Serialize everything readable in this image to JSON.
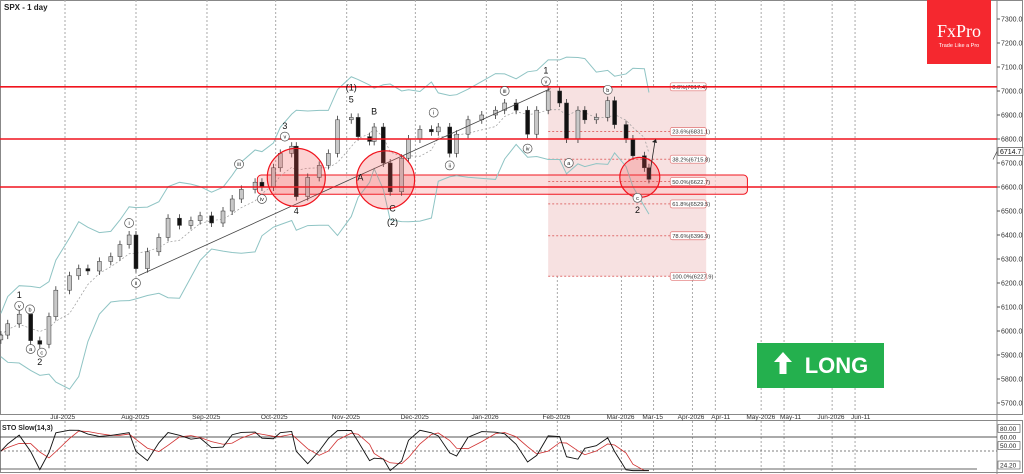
{
  "header": {
    "title": "SPX - 1 day"
  },
  "logo": {
    "brand": "FxPro",
    "tagline": "Trade Like a Pro"
  },
  "signal": {
    "label": "LONG",
    "icon": "arrow-up-icon",
    "color": "#24b04e"
  },
  "current_price": "6714.7",
  "chart_data": {
    "type": "candlestick",
    "symbol": "SPX",
    "timeframe": "1 day",
    "ylim": [
      5650,
      7350
    ],
    "y_ticks": [
      "7300.0",
      "7200.0",
      "7100.0",
      "7000.0",
      "6900.0",
      "6800.0",
      "6700.0",
      "6600.0",
      "6500.0",
      "6400.0",
      "6300.0",
      "6200.0",
      "6100.0",
      "6000.0",
      "5900.0",
      "5800.0",
      "5700.0"
    ],
    "x_ticks": [
      {
        "label": "Jul-2025",
        "date": "2025-07-01"
      },
      {
        "label": "Aug-2025",
        "date": "2025-08-01"
      },
      {
        "label": "Sep-2025",
        "date": "2025-09-01"
      },
      {
        "label": "Oct-2025",
        "date": "2025-10-01"
      },
      {
        "label": "Nov-2025",
        "date": "2025-11-01"
      },
      {
        "label": "Dec-2025",
        "date": "2025-12-01"
      },
      {
        "label": "Jan-2026",
        "date": "2026-01-01"
      },
      {
        "label": "Feb-2026",
        "date": "2026-02-01"
      },
      {
        "label": "Mar-2026",
        "date": "2026-03-01"
      },
      {
        "label": "Mar-15",
        "date": "2026-03-15"
      },
      {
        "label": "Apr-2026",
        "date": "2026-04-01"
      },
      {
        "label": "Apr-11",
        "date": "2026-04-11"
      },
      {
        "label": "May-2026",
        "date": "2026-05-01"
      },
      {
        "label": "May-11",
        "date": "2026-05-11"
      },
      {
        "label": "Jun-2026",
        "date": "2026-06-01"
      },
      {
        "label": "Jun-11",
        "date": "2026-06-11"
      }
    ],
    "candles": [
      [
        "2025-06-03",
        5983
      ],
      [
        "2025-06-06",
        6030
      ],
      [
        "2025-06-11",
        6070
      ],
      [
        "2025-06-16",
        5960
      ],
      [
        "2025-06-20",
        5945
      ],
      [
        "2025-06-24",
        6060
      ],
      [
        "2025-06-27",
        6170
      ],
      [
        "2025-07-03",
        6230
      ],
      [
        "2025-07-07",
        6260
      ],
      [
        "2025-07-11",
        6250
      ],
      [
        "2025-07-16",
        6290
      ],
      [
        "2025-07-21",
        6310
      ],
      [
        "2025-07-25",
        6360
      ],
      [
        "2025-07-29",
        6400
      ],
      [
        "2025-08-01",
        6260
      ],
      [
        "2025-08-06",
        6330
      ],
      [
        "2025-08-11",
        6390
      ],
      [
        "2025-08-15",
        6470
      ],
      [
        "2025-08-20",
        6440
      ],
      [
        "2025-08-25",
        6460
      ],
      [
        "2025-08-29",
        6480
      ],
      [
        "2025-09-03",
        6450
      ],
      [
        "2025-09-08",
        6500
      ],
      [
        "2025-09-12",
        6550
      ],
      [
        "2025-09-16",
        6590
      ],
      [
        "2025-09-22",
        6620
      ],
      [
        "2025-09-25",
        6600
      ],
      [
        "2025-09-30",
        6680
      ],
      [
        "2025-10-03",
        6740
      ],
      [
        "2025-10-08",
        6770
      ],
      [
        "2025-10-10",
        6560
      ],
      [
        "2025-10-15",
        6640
      ],
      [
        "2025-10-20",
        6690
      ],
      [
        "2025-10-24",
        6740
      ],
      [
        "2025-10-28",
        6880
      ],
      [
        "2025-11-03",
        6890
      ],
      [
        "2025-11-06",
        6810
      ],
      [
        "2025-11-11",
        6790
      ],
      [
        "2025-11-13",
        6850
      ],
      [
        "2025-11-17",
        6700
      ],
      [
        "2025-11-20",
        6580
      ],
      [
        "2025-11-25",
        6720
      ],
      [
        "2025-11-28",
        6800
      ],
      [
        "2025-12-03",
        6840
      ],
      [
        "2025-12-08",
        6830
      ],
      [
        "2025-12-11",
        6850
      ],
      [
        "2025-12-16",
        6740
      ],
      [
        "2025-12-19",
        6820
      ],
      [
        "2025-12-24",
        6880
      ],
      [
        "2025-12-30",
        6900
      ],
      [
        "2026-01-05",
        6920
      ],
      [
        "2026-01-09",
        6950
      ],
      [
        "2026-01-14",
        6920
      ],
      [
        "2026-01-19",
        6820
      ],
      [
        "2026-01-23",
        6920
      ],
      [
        "2026-01-28",
        7000
      ],
      [
        "2026-02-02",
        6950
      ],
      [
        "2026-02-05",
        6800
      ],
      [
        "2026-02-10",
        6920
      ],
      [
        "2026-02-13",
        6880
      ],
      [
        "2026-02-18",
        6890
      ],
      [
        "2026-02-23",
        6960
      ],
      [
        "2026-02-26",
        6860
      ],
      [
        "2026-03-03",
        6800
      ],
      [
        "2026-03-06",
        6730
      ],
      [
        "2026-03-11",
        6680
      ],
      [
        "2026-03-13",
        6632
      ]
    ],
    "horizontal_levels": [
      7017.4,
      6800,
      6600
    ],
    "support_zone": {
      "from": 6570,
      "to": 6650,
      "start": "2025-09-23",
      "end": "2026-04-25"
    },
    "trendline": [
      [
        "2025-08-02",
        6230
      ],
      [
        "2026-01-29",
        7010
      ]
    ],
    "highlight_circles": [
      [
        "2025-10-10",
        6640
      ],
      [
        "2025-11-18",
        6630
      ],
      [
        "2026-03-09",
        6640
      ]
    ],
    "fibonacci": {
      "start": "2026-01-28",
      "end": "2026-04-07",
      "levels": [
        {
          "label": "0.0%(7017.4)",
          "price": 7017.4
        },
        {
          "label": "23.6%(6831.1)",
          "price": 6831.1
        },
        {
          "label": "38.2%(6715.8)",
          "price": 6715.8
        },
        {
          "label": "50.0%(6622.7)",
          "price": 6622.7
        },
        {
          "label": "61.8%(6529.5)",
          "price": 6529.5
        },
        {
          "label": "78.6%(6396.9)",
          "price": 6396.9
        },
        {
          "label": "100.0%(6227.9)",
          "price": 6227.9
        }
      ]
    },
    "wave_labels": [
      {
        "text": "1",
        "date": "2025-06-11",
        "price": 6150,
        "circle": false
      },
      {
        "text": "v",
        "date": "2025-06-11",
        "price": 6105,
        "circle": true
      },
      {
        "text": "b",
        "date": "2025-06-14",
        "price": 6090,
        "circle": true
      },
      {
        "text": "a",
        "date": "2025-06-16",
        "price": 5925,
        "circle": true
      },
      {
        "text": "c",
        "date": "2025-06-20",
        "price": 5910,
        "circle": true
      },
      {
        "text": "2",
        "date": "2025-06-20",
        "price": 5870,
        "circle": false
      },
      {
        "text": "i",
        "date": "2025-07-29",
        "price": 6450,
        "circle": true
      },
      {
        "text": "ii",
        "date": "2025-08-01",
        "price": 6200,
        "circle": true
      },
      {
        "text": "iii",
        "date": "2025-09-15",
        "price": 6695,
        "circle": true
      },
      {
        "text": "iv",
        "date": "2025-09-25",
        "price": 6550,
        "circle": true
      },
      {
        "text": "3",
        "date": "2025-10-05",
        "price": 6855,
        "circle": false
      },
      {
        "text": "v",
        "date": "2025-10-05",
        "price": 6810,
        "circle": true
      },
      {
        "text": "4",
        "date": "2025-10-10",
        "price": 6500,
        "circle": false
      },
      {
        "text": "(1)",
        "date": "2025-11-03",
        "price": 7015,
        "circle": false
      },
      {
        "text": "5",
        "date": "2025-11-03",
        "price": 6965,
        "circle": false
      },
      {
        "text": "B",
        "date": "2025-11-13",
        "price": 6915,
        "circle": false
      },
      {
        "text": "A",
        "date": "2025-11-07",
        "price": 6640,
        "circle": false
      },
      {
        "text": "C",
        "date": "2025-11-21",
        "price": 6510,
        "circle": false
      },
      {
        "text": "(2)",
        "date": "2025-11-21",
        "price": 6455,
        "circle": false
      },
      {
        "text": "i",
        "date": "2025-12-09",
        "price": 6910,
        "circle": true
      },
      {
        "text": "ii",
        "date": "2025-12-16",
        "price": 6690,
        "circle": true
      },
      {
        "text": "iii",
        "date": "2026-01-09",
        "price": 7000,
        "circle": true
      },
      {
        "text": "iv",
        "date": "2026-01-19",
        "price": 6760,
        "circle": true
      },
      {
        "text": "1",
        "date": "2026-01-27",
        "price": 7085,
        "circle": false
      },
      {
        "text": "v",
        "date": "2026-01-27",
        "price": 7040,
        "circle": true
      },
      {
        "text": "a",
        "date": "2026-02-06",
        "price": 6700,
        "circle": true
      },
      {
        "text": "b",
        "date": "2026-02-23",
        "price": 7005,
        "circle": true
      },
      {
        "text": "c",
        "date": "2026-03-08",
        "price": 6555,
        "circle": true
      },
      {
        "text": "2",
        "date": "2026-03-08",
        "price": 6505,
        "circle": false
      }
    ],
    "indicator": {
      "name": "STO Slow(14,3)",
      "levels": [
        "80.00",
        "60.00",
        "50.00",
        "24.20"
      ]
    },
    "colors": {
      "level_line": "#f0141e",
      "zone_fill": "#fbd0d0",
      "fib_fill": "#f7e1e1",
      "bollinger": "#8fc4c4",
      "bull": "#c8c8c8",
      "bear": "#111111",
      "stoch_main": "#111111",
      "stoch_signal": "#d03030"
    }
  }
}
